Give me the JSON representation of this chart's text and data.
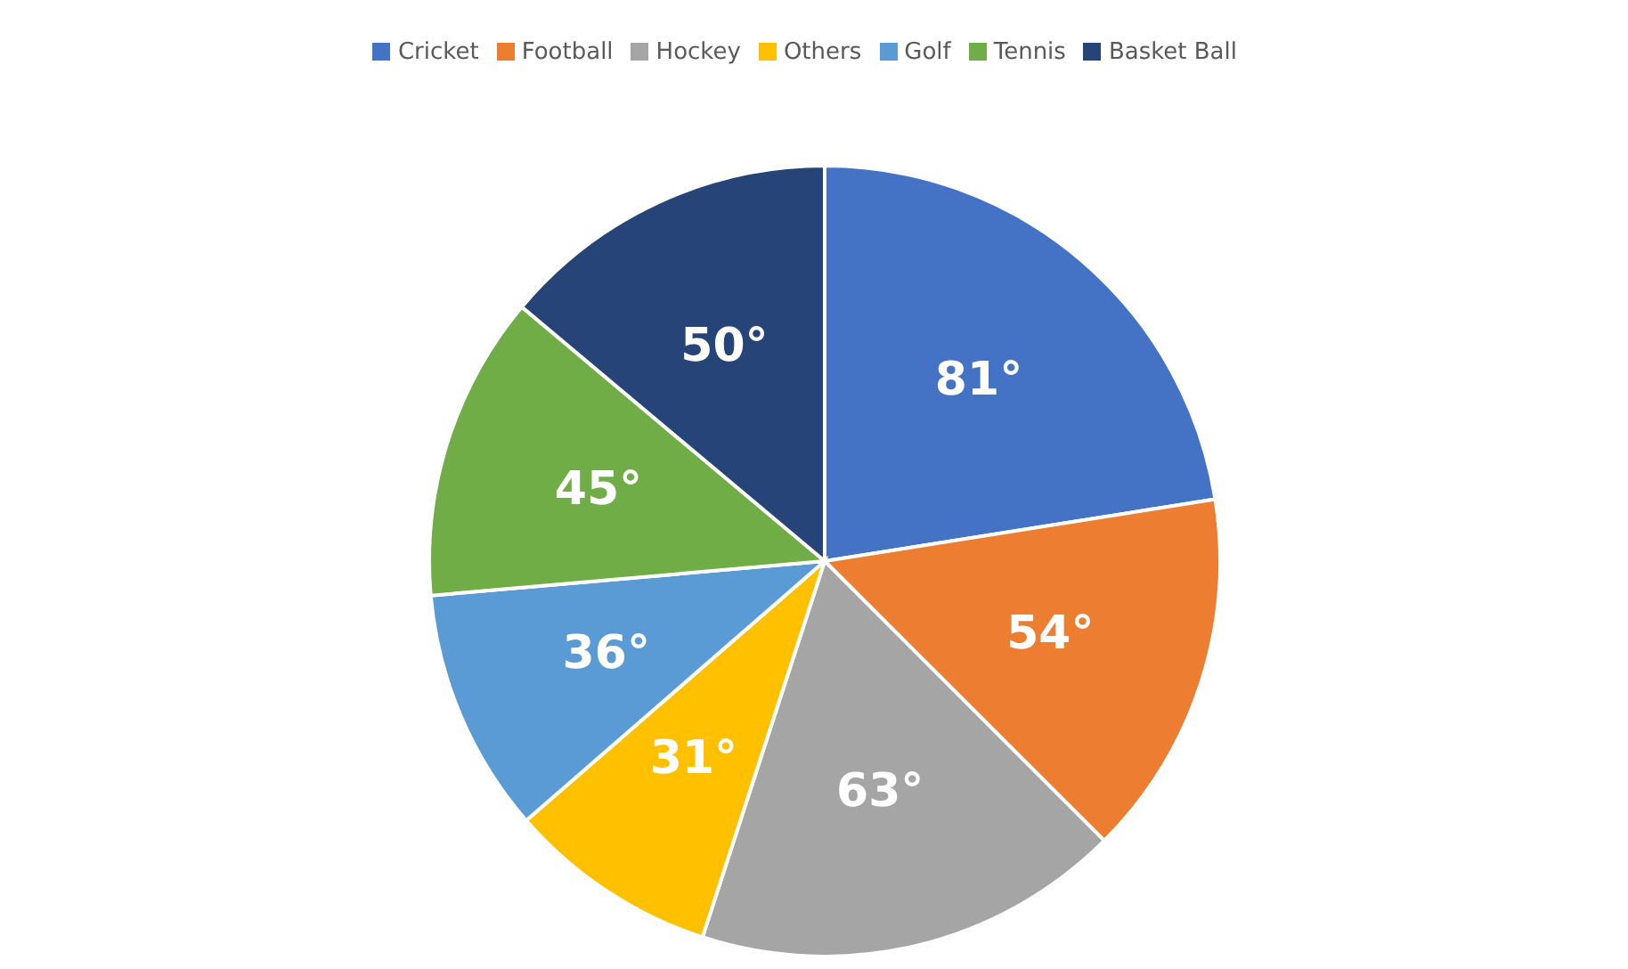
{
  "chart_data": {
    "type": "pie",
    "categories": [
      "Cricket",
      "Football",
      "Hockey",
      "Others",
      "Golf",
      "Tennis",
      "Basket Ball"
    ],
    "values": [
      81,
      54,
      63,
      31,
      36,
      45,
      50
    ],
    "colors": [
      "#4472c4",
      "#ed7d31",
      "#a5a5a5",
      "#ffc000",
      "#5b9bd5",
      "#70ad47",
      "#264478"
    ],
    "value_labels": [
      "81°",
      "54°",
      "63°",
      "31°",
      "36°",
      "45°",
      "50°"
    ],
    "legend": "top"
  }
}
